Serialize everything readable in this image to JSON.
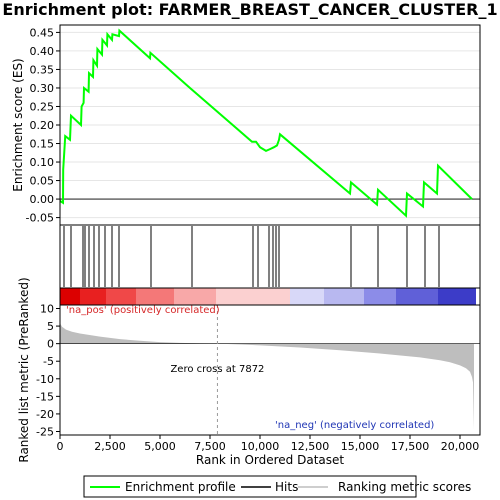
{
  "chart_data": {
    "type": "line",
    "title": "Enrichment plot: FARMER_BREAST_CANCER_CLUSTER_1",
    "xlim": [
      0,
      21000
    ],
    "x_ticks": [
      "0",
      "2,500",
      "5,000",
      "7,500",
      "10,000",
      "12,500",
      "15,000",
      "17,500",
      "20,000"
    ],
    "top_panel": {
      "ylabel": "Enrichment score (ES)",
      "ylim": [
        -0.07,
        0.47
      ],
      "y_ticks": [
        "-0.05",
        "0.00",
        "0.05",
        "0.10",
        "0.15",
        "0.20",
        "0.25",
        "0.30",
        "0.35",
        "0.40",
        "0.45"
      ],
      "grid": true,
      "series": [
        {
          "name": "Enrichment profile",
          "color": "#00ff00",
          "x": [
            0,
            150,
            160,
            240,
            260,
            500,
            550,
            1050,
            1080,
            1180,
            1200,
            1430,
            1450,
            1650,
            1670,
            1850,
            1870,
            2100,
            2120,
            2350,
            2370,
            2600,
            2620,
            2950,
            2970,
            4500,
            4520,
            6500,
            9600,
            9800,
            10000,
            10300,
            10500,
            10700,
            10850,
            10950,
            11000,
            14500,
            14550,
            15850,
            15900,
            17300,
            17350,
            18150,
            18200,
            18850,
            18900,
            20600
          ],
          "y": [
            -0.005,
            -0.01,
            0.08,
            0.15,
            0.17,
            0.16,
            0.225,
            0.2,
            0.25,
            0.26,
            0.3,
            0.29,
            0.34,
            0.33,
            0.375,
            0.36,
            0.405,
            0.39,
            0.43,
            0.415,
            0.445,
            0.43,
            0.445,
            0.44,
            0.455,
            0.38,
            0.395,
            0.3,
            0.155,
            0.155,
            0.14,
            0.13,
            0.135,
            0.14,
            0.145,
            0.16,
            0.175,
            0.015,
            0.045,
            -0.015,
            0.025,
            -0.045,
            0.015,
            -0.02,
            0.045,
            0.015,
            0.09,
            0.0
          ]
        }
      ]
    },
    "hits": {
      "name": "Hits",
      "color": "#000000",
      "x": [
        200,
        550,
        1150,
        1250,
        1450,
        1700,
        1950,
        2250,
        2600,
        2950,
        4550,
        6600,
        9650,
        9900,
        10450,
        10650,
        10800,
        10950,
        14550,
        15900,
        17350,
        18250,
        18950
      ]
    },
    "rank_colorbar": {
      "colors": [
        "#dc0000",
        "#e82020",
        "#f04848",
        "#f47878",
        "#f8a8a8",
        "#fbd0d0",
        "#d8d8f8",
        "#b8b8f0",
        "#8c8ce8",
        "#6060d8",
        "#3c3cc8",
        "#1e00c0"
      ],
      "x": [
        0,
        1000,
        2300,
        3800,
        5700,
        7800,
        11500,
        13200,
        15200,
        16800,
        18900,
        20800
      ]
    },
    "bottom_panel": {
      "ylabel": "Ranked list metric (PreRanked)",
      "xlabel": "Rank in Ordered Dataset",
      "ylim": [
        -26,
        11
      ],
      "y_ticks": [
        "10",
        "5",
        "0",
        "-5",
        "-10",
        "-15",
        "-20",
        "-25"
      ],
      "series": [
        {
          "name": "Ranking metric scores",
          "color": "#bebebe",
          "x": [
            0,
            30,
            100,
            300,
            600,
            1000,
            2000,
            3000,
            4000,
            5000,
            6000,
            7000,
            7872,
            9000,
            10000,
            12000,
            14000,
            16000,
            18000,
            19000,
            19500,
            20000,
            20300,
            20500,
            20600,
            20650,
            20700
          ],
          "y": [
            6.5,
            5.5,
            4.8,
            4.0,
            3.4,
            2.9,
            2.0,
            1.3,
            0.8,
            0.45,
            0.2,
            0.07,
            0.0,
            -0.25,
            -0.5,
            -1.1,
            -1.9,
            -2.8,
            -3.9,
            -4.7,
            -5.3,
            -6.2,
            -7.0,
            -8.0,
            -9.5,
            -11.0,
            -24.5
          ]
        }
      ],
      "annotations": {
        "positive": "'na_pos' (positively correlated)",
        "negative": "'na_neg' (negatively correlated)",
        "zero_cross": "Zero cross at 7872",
        "zero_cross_x": 7872
      }
    },
    "legend": {
      "placement": "bottom",
      "items": [
        {
          "label": "Enrichment profile",
          "color": "#00ff00"
        },
        {
          "label": "Hits",
          "color": "#000000"
        },
        {
          "label": "Ranking metric scores",
          "color": "#bebebe"
        }
      ]
    }
  }
}
